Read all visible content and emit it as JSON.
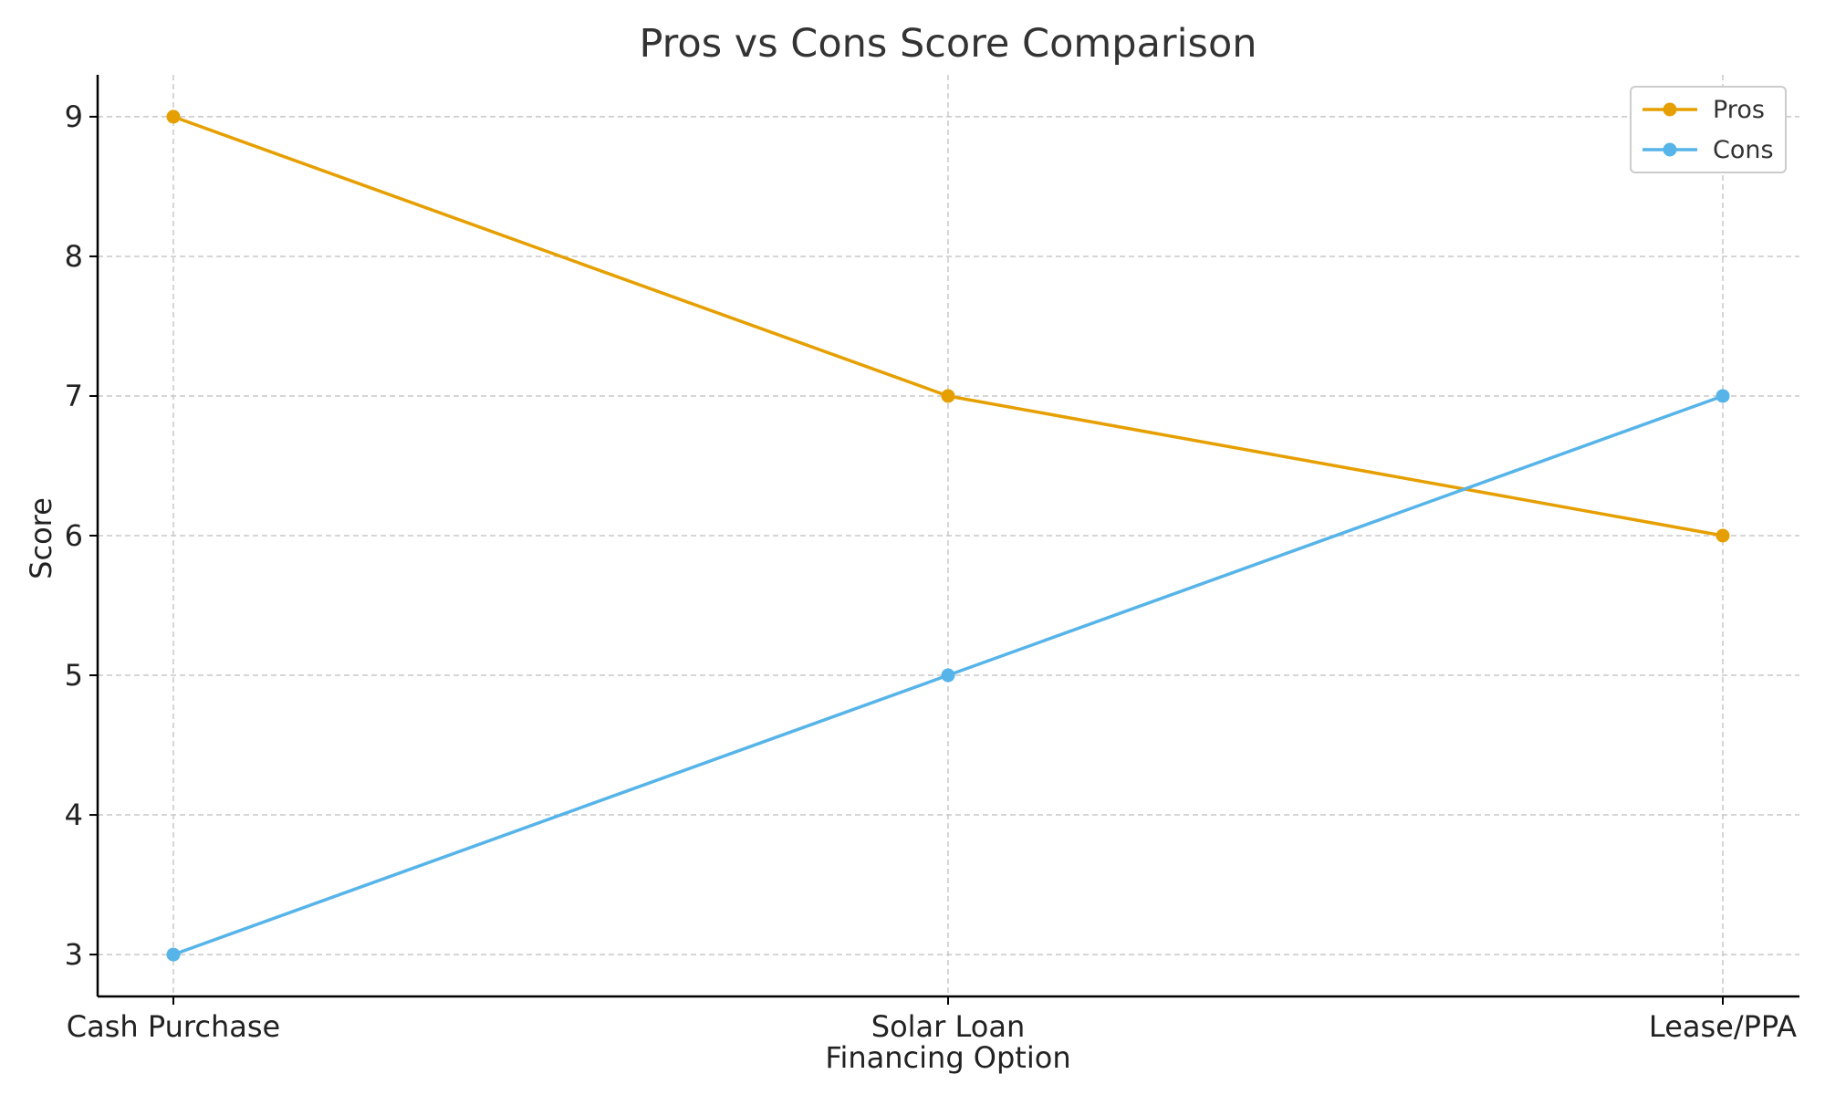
{
  "chart_data": {
    "type": "line",
    "title": "Pros vs Cons Score Comparison",
    "xlabel": "Financing Option",
    "ylabel": "Score",
    "categories": [
      "Cash Purchase",
      "Solar Loan",
      "Lease/PPA"
    ],
    "ylim": [
      2.7,
      9.3
    ],
    "yticks": [
      3,
      4,
      5,
      6,
      7,
      8,
      9
    ],
    "grid": true,
    "legend_position": "top-right",
    "series": [
      {
        "name": "Pros",
        "values": [
          9,
          7,
          6
        ],
        "color": "#E69F00"
      },
      {
        "name": "Cons",
        "values": [
          3,
          5,
          7
        ],
        "color": "#56B4E9"
      }
    ]
  }
}
